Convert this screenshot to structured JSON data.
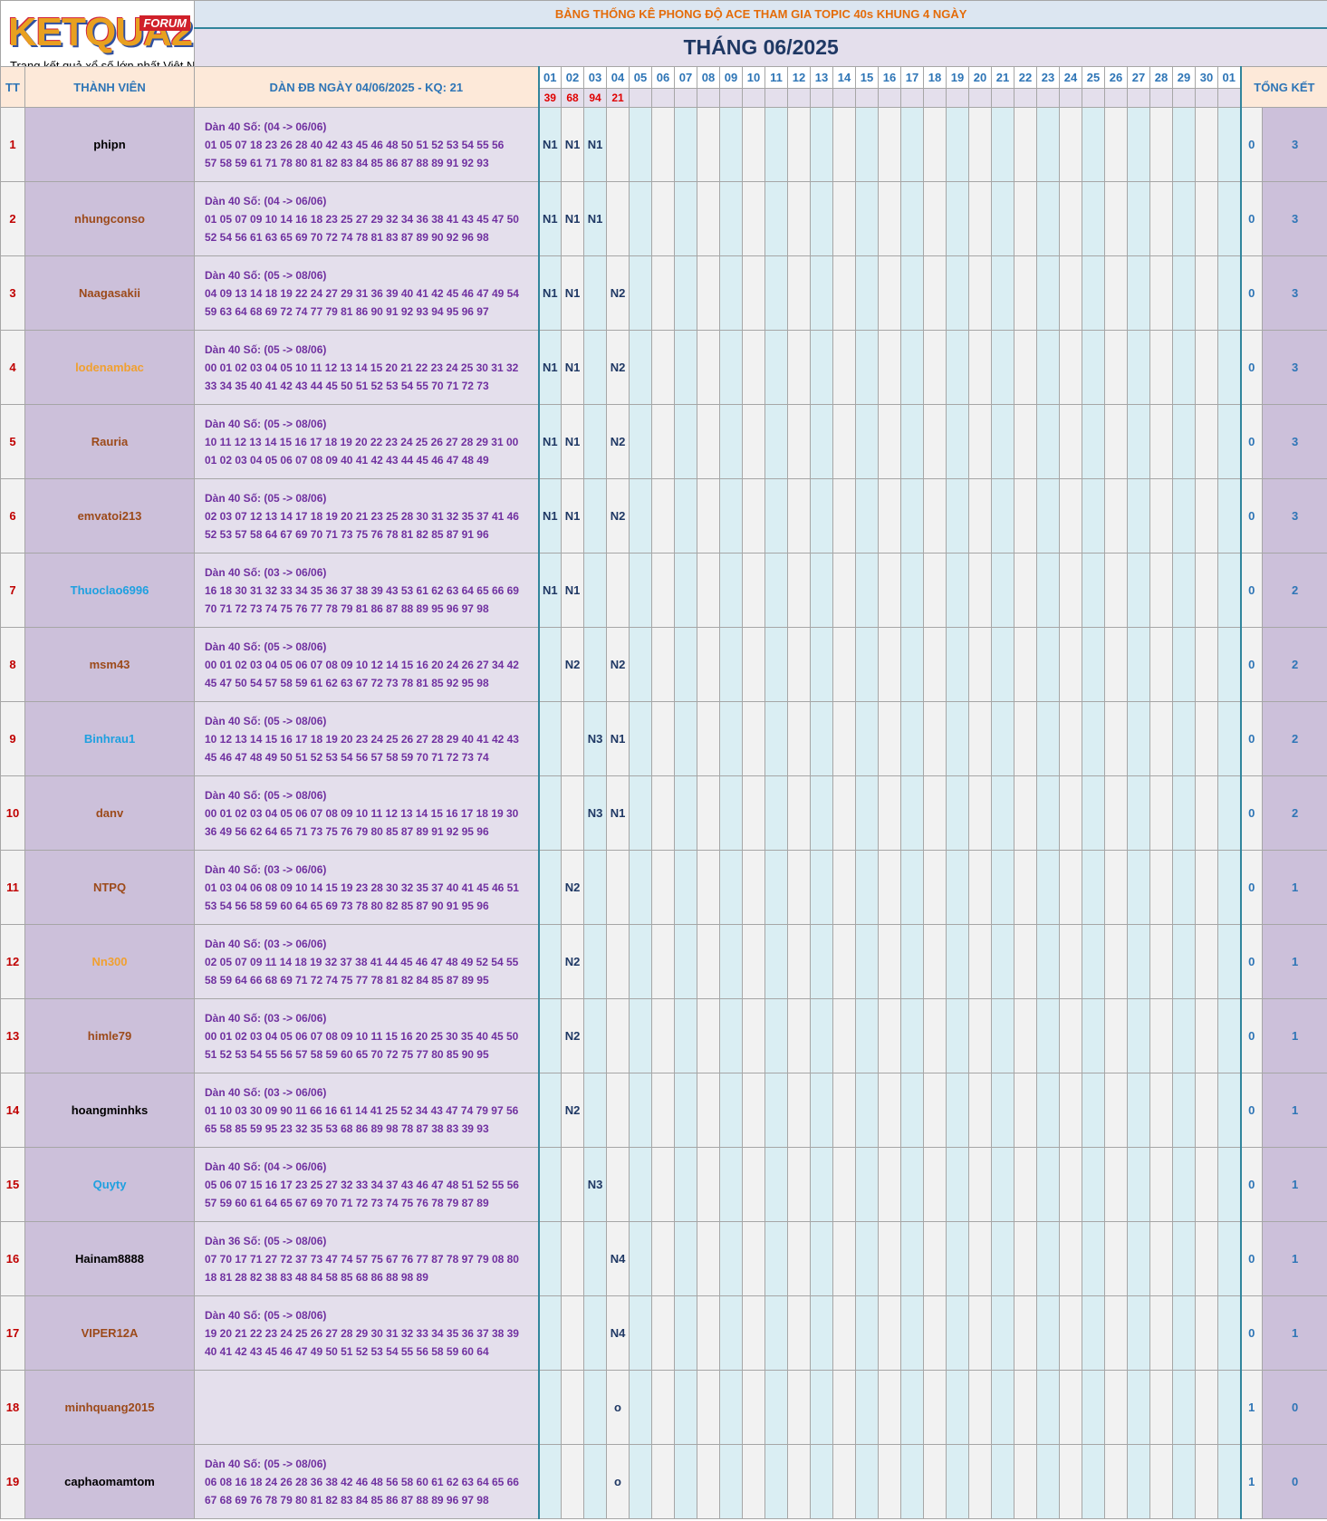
{
  "logo": {
    "name": "KETQUA2",
    "badge": "FORUM",
    "slogan": "Trang kết quả xổ số lớn nhất Việt Nam"
  },
  "header": {
    "title": "BẢNG THỐNG KÊ PHONG ĐỘ ACE THAM GIA TOPIC 40s KHUNG 4 NGÀY",
    "month": "THÁNG 06/2025"
  },
  "table": {
    "columns": {
      "tt": "TT",
      "member": "THÀNH VIÊN",
      "dan": "DÀN ĐB NGÀY 04/06/2025 - KQ: 21",
      "summary": "TỔNG KẾT"
    },
    "days": [
      "01",
      "02",
      "03",
      "04",
      "05",
      "06",
      "07",
      "08",
      "09",
      "10",
      "11",
      "12",
      "13",
      "14",
      "15",
      "16",
      "17",
      "18",
      "19",
      "20",
      "21",
      "22",
      "23",
      "24",
      "25",
      "26",
      "27",
      "28",
      "29",
      "30",
      "01"
    ],
    "results": [
      39,
      68,
      94,
      21
    ],
    "rows": [
      {
        "tt": 1,
        "member": "phipn",
        "color": "#000000",
        "dan_title": "Dàn 40 Số: (04 -> 06/06)",
        "dan_line1": "01 05 07 18 23 26 28 40 42 43 45 46 48 50 51 52 53 54 55 56",
        "dan_line2": "57 58 59 61 71 78 80 81 82 83 84 85 86 87 88 89 91 92 93",
        "marks": [
          "N1",
          "N1",
          "N1"
        ],
        "summary": [
          0,
          3
        ]
      },
      {
        "tt": 2,
        "member": "nhungconso",
        "color": "#9c4a1a",
        "dan_title": "Dàn 40 Số: (04 -> 06/06)",
        "dan_line1": "01 05 07 09 10 14 16 18 23 25 27 29 32 34 36 38 41 43 45 47 50",
        "dan_line2": "52 54 56 61 63 65 69 70 72 74 78 81 83 87 89 90 92 96 98",
        "marks": [
          "N1",
          "N1",
          "N1"
        ],
        "summary": [
          0,
          3
        ]
      },
      {
        "tt": 3,
        "member": "Naagasakii",
        "color": "#9c4a1a",
        "dan_title": "Dàn 40 Số: (05 -> 08/06)",
        "dan_line1": "04 09 13 14 18 19 22 24 27 29 31 36 39 40 41 42 45 46 47 49 54",
        "dan_line2": "59 63 64 68 69 72 74 77 79 81 86 90 91 92 93 94 95 96 97",
        "marks": [
          "N1",
          "N1",
          null,
          "N2"
        ],
        "summary": [
          0,
          3
        ]
      },
      {
        "tt": 4,
        "member": "lodenambac",
        "color": "#f0a030",
        "dan_title": "Dàn 40 Số: (05 -> 08/06)",
        "dan_line1": "00 01 02 03 04 05 10 11 12 13 14 15 20 21 22 23 24 25 30 31 32",
        "dan_line2": "33 34 35 40 41 42 43 44 45 50 51 52 53 54 55 70 71 72 73",
        "marks": [
          "N1",
          "N1",
          null,
          "N2"
        ],
        "summary": [
          0,
          3
        ]
      },
      {
        "tt": 5,
        "member": "Rauria",
        "color": "#9c4a1a",
        "dan_title": "Dàn 40 Số: (05 -> 08/06)",
        "dan_line1": "10 11 12 13 14 15 16 17 18 19 20 22 23 24 25 26 27 28 29 31 00",
        "dan_line2": "01 02 03 04 05 06 07 08 09 40 41 42 43 44 45 46 47 48 49",
        "marks": [
          "N1",
          "N1",
          null,
          "N2"
        ],
        "summary": [
          0,
          3
        ]
      },
      {
        "tt": 6,
        "member": "emvatoi213",
        "color": "#9c4a1a",
        "dan_title": "Dàn 40 Số: (05 -> 08/06)",
        "dan_line1": "02 03 07 12 13 14 17 18 19 20 21 23 25 28 30 31 32 35 37 41 46",
        "dan_line2": "52 53 57 58 64 67 69 70 71 73 75 76 78 81 82 85 87 91 96",
        "marks": [
          "N1",
          "N1",
          null,
          "N2"
        ],
        "summary": [
          0,
          3
        ]
      },
      {
        "tt": 7,
        "member": "Thuoclao6996",
        "color": "#1ea0e0",
        "dan_title": "Dàn 40 Số: (03 -> 06/06)",
        "dan_line1": "16 18 30 31 32 33 34 35 36 37 38 39 43 53 61 62 63 64 65 66 69",
        "dan_line2": "70 71 72 73 74 75 76 77 78 79 81 86 87 88 89 95 96 97 98",
        "marks": [
          "N1",
          "N1"
        ],
        "summary": [
          0,
          2
        ]
      },
      {
        "tt": 8,
        "member": "msm43",
        "color": "#9c4a1a",
        "dan_title": "Dàn 40 Số: (05 -> 08/06)",
        "dan_line1": "00 01 02 03 04 05 06 07 08 09 10 12 14 15 16 20 24 26 27 34 42",
        "dan_line2": "45 47 50 54 57 58 59 61 62 63 67 72 73 78 81 85 92 95 98",
        "marks": [
          null,
          "N2",
          null,
          "N2"
        ],
        "summary": [
          0,
          2
        ]
      },
      {
        "tt": 9,
        "member": "Binhrau1",
        "color": "#1ea0e0",
        "dan_title": "Dàn 40 Số: (05 -> 08/06)",
        "dan_line1": "10 12 13 14 15 16 17 18 19 20 23 24 25 26 27 28 29 40 41 42 43",
        "dan_line2": "45 46 47 48 49 50 51 52 53 54 56 57 58 59 70 71 72 73 74",
        "marks": [
          null,
          null,
          "N3",
          "N1"
        ],
        "summary": [
          0,
          2
        ]
      },
      {
        "tt": 10,
        "member": "danv",
        "color": "#9c4a1a",
        "dan_title": "Dàn 40 Số: (05 -> 08/06)",
        "dan_line1": "00 01 02 03 04 05 06 07 08 09 10 11 12 13 14 15 16 17 18 19 30",
        "dan_line2": "36 49 56 62 64 65 71 73 75 76 79 80 85 87 89 91 92 95 96",
        "marks": [
          null,
          null,
          "N3",
          "N1"
        ],
        "summary": [
          0,
          2
        ]
      },
      {
        "tt": 11,
        "member": "NTPQ",
        "color": "#9c4a1a",
        "dan_title": "Dàn 40 Số: (03 -> 06/06)",
        "dan_line1": "01 03 04 06 08 09 10 14 15 19 23 28 30 32 35 37 40 41 45 46 51",
        "dan_line2": "53 54 56 58 59 60 64 65 69 73 78 80 82 85 87 90 91 95 96",
        "marks": [
          null,
          "N2"
        ],
        "summary": [
          0,
          1
        ]
      },
      {
        "tt": 12,
        "member": "Nn300",
        "color": "#f0a030",
        "dan_title": "Dàn 40 Số: (03 -> 06/06)",
        "dan_line1": "02 05 07 09 11 14 18 19 32 37 38 41 44 45 46 47 48 49 52 54 55",
        "dan_line2": "58 59 64 66 68 69 71 72 74 75 77 78 81 82 84 85 87 89 95",
        "marks": [
          null,
          "N2"
        ],
        "summary": [
          0,
          1
        ]
      },
      {
        "tt": 13,
        "member": "himle79",
        "color": "#9c4a1a",
        "dan_title": "Dàn 40 Số: (03 -> 06/06)",
        "dan_line1": "00 01 02 03 04 05 06 07 08 09 10 11 15 16 20 25 30 35 40 45 50",
        "dan_line2": "51 52 53 54 55 56 57 58 59 60 65 70 72 75 77 80 85 90 95",
        "marks": [
          null,
          "N2"
        ],
        "summary": [
          0,
          1
        ]
      },
      {
        "tt": 14,
        "member": "hoangminhks",
        "color": "#000000",
        "dan_title": "Dàn 40 Số: (03 -> 06/06)",
        "dan_line1": "01 10 03 30 09 90 11 66 16 61 14 41 25 52 34 43 47 74 79 97 56",
        "dan_line2": "65 58 85 59 95 23 32 35 53 68 86 89 98 78 87 38 83 39 93",
        "marks": [
          null,
          "N2"
        ],
        "summary": [
          0,
          1
        ]
      },
      {
        "tt": 15,
        "member": "Quyty",
        "color": "#1ea0e0",
        "dan_title": "Dàn 40 Số: (04 -> 06/06)",
        "dan_line1": "05 06 07 15 16 17 23 25 27 32 33 34 37 43 46 47 48 51 52 55 56",
        "dan_line2": "57 59 60 61 64 65 67 69 70 71 72 73 74 75 76 78 79 87 89",
        "marks": [
          null,
          null,
          "N3"
        ],
        "summary": [
          0,
          1
        ]
      },
      {
        "tt": 16,
        "member": "Hainam8888",
        "color": "#000000",
        "dan_title": "Dàn 36 Số: (05 -> 08/06)",
        "dan_line1": "07 70 17 71 27 72 37 73 47 74 57 75 67 76 77 87 78 97 79 08 80",
        "dan_line2": "18 81 28 82 38 83 48 84 58 85 68 86 88 98 89",
        "marks": [
          null,
          null,
          null,
          "N4"
        ],
        "summary": [
          0,
          1
        ]
      },
      {
        "tt": 17,
        "member": "VIPER12A",
        "color": "#9c4a1a",
        "dan_title": "Dàn 40 Số: (05 -> 08/06)",
        "dan_line1": "19 20 21 22 23 24 25 26 27 28 29 30 31 32 33 34 35 36 37 38 39",
        "dan_line2": "40 41 42 43 45 46 47 49 50 51 52 53 54 55 56 58 59 60 64",
        "marks": [
          null,
          null,
          null,
          "N4"
        ],
        "summary": [
          0,
          1
        ]
      },
      {
        "tt": 18,
        "member": "minhquang2015",
        "color": "#9c4a1a",
        "marks": [
          null,
          null,
          null,
          "o"
        ],
        "summary": [
          1,
          0
        ]
      },
      {
        "tt": 19,
        "member": "caphaomamtom",
        "color": "#000000",
        "dan_title": "Dàn 40 Số: (05 -> 08/06)",
        "dan_line1": "06 08 16 18 24 26 28 36 38 42 46 48 56 58 60 61 62 63 64 65 66",
        "dan_line2": "67 68 69 76 78 79 80 81 82 83 84 85 86 87 88 89 96 97 98",
        "marks": [
          null,
          null,
          null,
          "o"
        ],
        "summary": [
          1,
          0
        ]
      }
    ]
  }
}
